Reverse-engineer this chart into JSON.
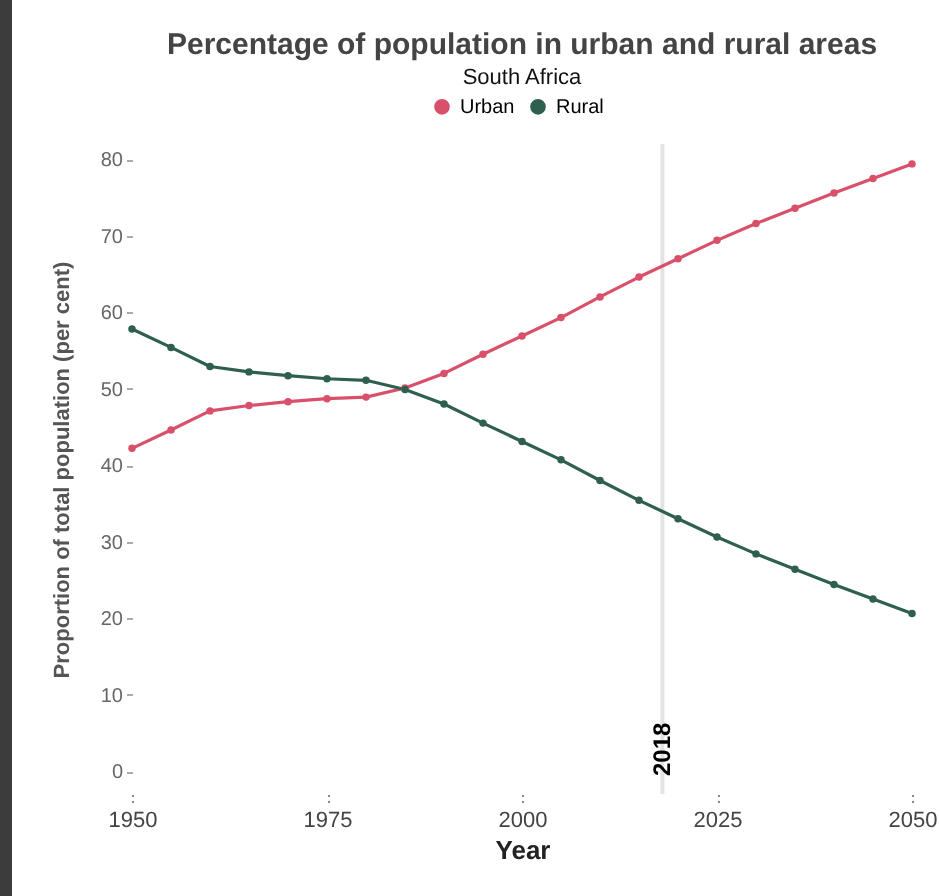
{
  "chart_data": {
    "type": "line",
    "title": "Percentage of population in urban and rural areas",
    "subtitle": "South Africa",
    "xlabel": "Year",
    "ylabel": "Proportion of total population (per cent)",
    "x": [
      1950,
      1955,
      1960,
      1965,
      1970,
      1975,
      1980,
      1985,
      1990,
      1995,
      2000,
      2005,
      2010,
      2015,
      2020,
      2025,
      2030,
      2035,
      2040,
      2045,
      2050
    ],
    "series": [
      {
        "name": "Urban",
        "color": "#d9506a",
        "values": [
          42.2,
          44.6,
          47.1,
          47.8,
          48.3,
          48.7,
          48.9,
          50.1,
          52.0,
          54.5,
          56.9,
          59.3,
          62.0,
          64.6,
          67.0,
          69.4,
          71.6,
          73.6,
          75.6,
          77.5,
          79.4
        ]
      },
      {
        "name": "Rural",
        "color": "#2f5f4f",
        "values": [
          57.8,
          55.4,
          52.9,
          52.2,
          51.7,
          51.3,
          51.1,
          49.9,
          48.0,
          45.5,
          43.1,
          40.7,
          38.0,
          35.4,
          33.0,
          30.6,
          28.4,
          26.4,
          24.4,
          22.5,
          20.6
        ]
      }
    ],
    "xlim": [
      1950,
      2050
    ],
    "xticks": [
      1950,
      1975,
      2000,
      2025,
      2050
    ],
    "ylim": [
      -3,
      82
    ],
    "yticks": [
      0,
      10,
      20,
      30,
      40,
      50,
      60,
      70,
      80
    ],
    "ref_lines": [
      {
        "axis": "x",
        "value": 2018,
        "label": "2018",
        "color": "#e4e4e4"
      }
    ],
    "legend": "top",
    "grid": false,
    "marker": "circle",
    "line_style": "solid"
  }
}
